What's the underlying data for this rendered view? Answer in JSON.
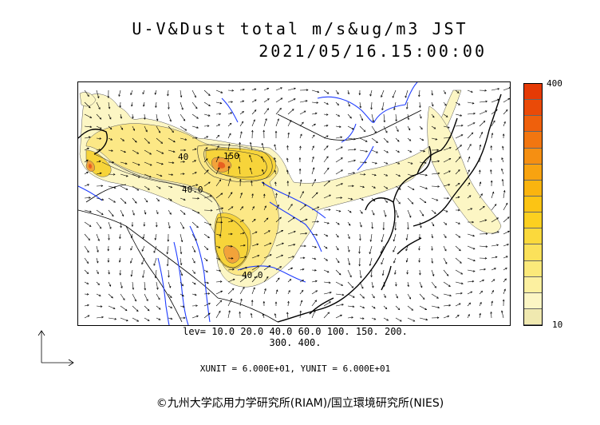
{
  "header": {
    "title": "U-V&Dust total m/s&ug/m3 JST",
    "datetime": "2021/05/16.15:00:00"
  },
  "colorbar": {
    "max_label": "400",
    "min_label": "10",
    "colors": [
      "#f0e9b0",
      "#fcf6c4",
      "#fcf0a0",
      "#fbe97a",
      "#fbe15a",
      "#fbd93c",
      "#fcd020",
      "#fcc414",
      "#fab40f",
      "#f8a310",
      "#f58f12",
      "#f27610",
      "#ef600c",
      "#ea4a08",
      "#e53a05"
    ]
  },
  "map": {
    "colors": {
      "land": "#000000",
      "rivers": "#1e3cff",
      "dust_light": "#fcf6c4",
      "dust_mid": "#fce886",
      "dust_heavy": "#f7d43a",
      "dust_peak": "#f2a33a",
      "dust_max": "#e86020",
      "contour": "#333333"
    },
    "contour_labels": [
      "150",
      "40.0",
      "40.0",
      "40"
    ]
  },
  "footer": {
    "lev_line1": "lev= 10.0 20.0 40.0 60.0 100. 150. 200.",
    "lev_line2": "300. 400.",
    "unit_line": "XUNIT = 6.000E+01, YUNIT = 6.000E+01",
    "copyright": "©九州大学応用力学研究所(RIAM)/国立環境研究所(NIES)"
  }
}
